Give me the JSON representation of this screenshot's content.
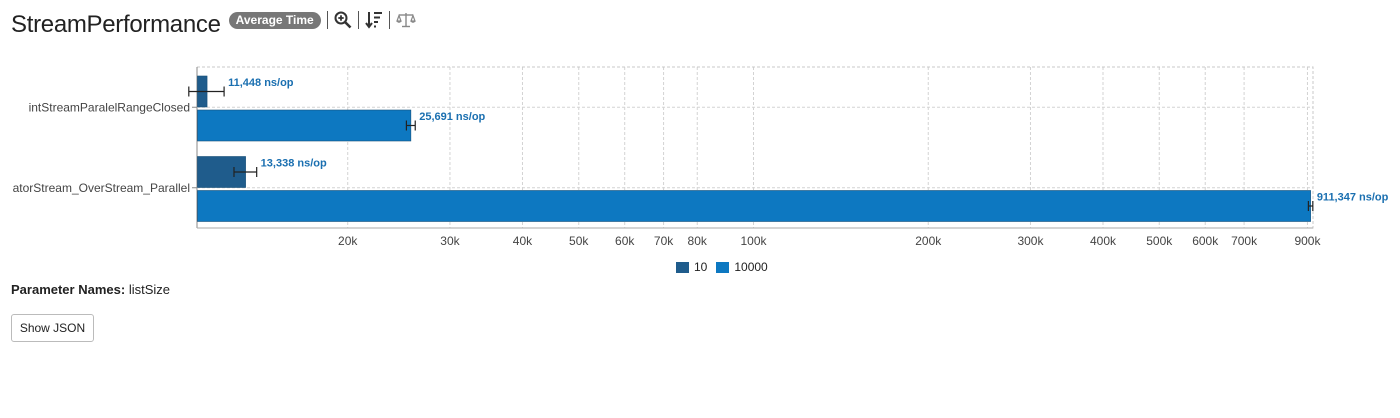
{
  "header": {
    "title": "StreamPerformance",
    "mode_badge": "Average Time",
    "tools": [
      "zoom-icon",
      "sort-icon",
      "compare-icon"
    ]
  },
  "parameters": {
    "label": "Parameter Names:",
    "value": "listSize"
  },
  "show_json_button": "Show JSON",
  "colors": {
    "series_10": "#1f5c8c",
    "series_10000": "#0d78c1",
    "value_label": "#1a6fb0"
  },
  "chart_data": {
    "type": "bar",
    "orientation": "horizontal",
    "x_scale": "log",
    "xlim": [
      11000,
      920000
    ],
    "grid": true,
    "legend_position": "bottom-center",
    "categories": [
      "intStreamParalelRangeClosed",
      "iteratorStream_OverStream_Parallel"
    ],
    "category_labels": [
      "intStreamParalelRangeClosed",
      "atorStream_OverStream_Parallel"
    ],
    "unit": "ns/op",
    "x_ticks": [
      20000,
      30000,
      40000,
      50000,
      60000,
      70000,
      80000,
      100000,
      200000,
      300000,
      400000,
      500000,
      600000,
      700000,
      900000
    ],
    "x_tick_labels": [
      "20k",
      "30k",
      "40k",
      "50k",
      "60k",
      "70k",
      "80k",
      "100k",
      "200k",
      "300k",
      "400k",
      "500k",
      "600k",
      "700k",
      "900k"
    ],
    "series": [
      {
        "name": "10",
        "color": "#1f5c8c",
        "values": [
          11448,
          13338
        ],
        "labels": [
          "11,448 ns/op",
          "13,338 ns/op"
        ],
        "error": [
          800,
          600
        ]
      },
      {
        "name": "10000",
        "color": "#0d78c1",
        "values": [
          25691,
          911347
        ],
        "labels": [
          "25,691 ns/op",
          "911,347 ns/op"
        ],
        "error": [
          450,
          8000
        ]
      }
    ]
  }
}
